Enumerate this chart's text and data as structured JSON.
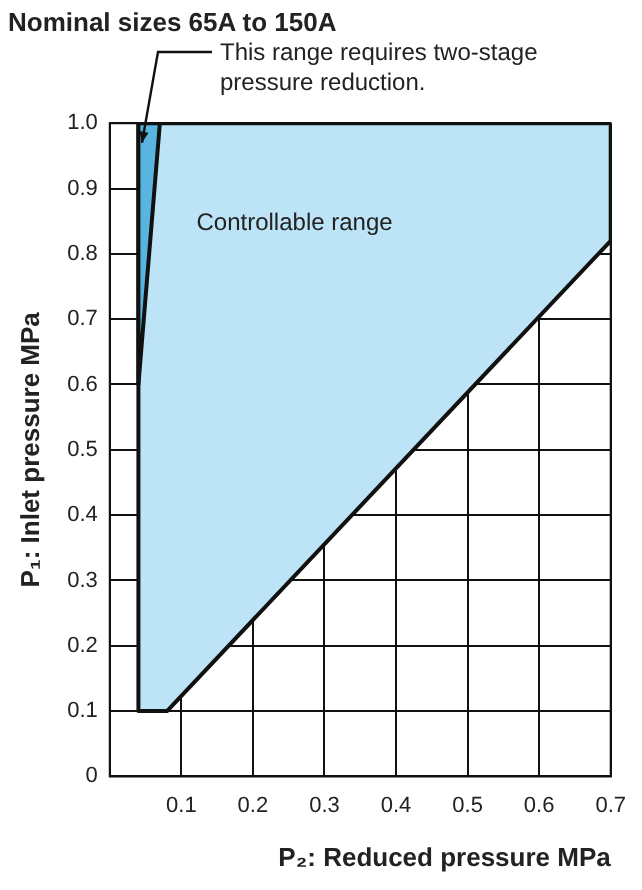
{
  "chart_data": {
    "type": "area",
    "title": "Nominal sizes 65A to 150A",
    "xlabel": "P₂: Reduced pressure MPa",
    "ylabel": "P₁: Inlet pressure MPa",
    "xlim": [
      0,
      0.7
    ],
    "ylim": [
      0,
      1
    ],
    "xticks": [
      0.1,
      0.2,
      0.3,
      0.4,
      0.5,
      0.6,
      0.7
    ],
    "yticks": [
      0,
      0.1,
      0.2,
      0.3,
      0.4,
      0.5,
      0.6,
      0.7,
      0.8,
      0.9,
      {
        "value": 1,
        "label": "1.0"
      }
    ],
    "grid": true,
    "legend": false,
    "series": [
      {
        "name": "Controllable range",
        "color": "#bde3f7",
        "x": [
          0.04,
          0.08,
          0.7,
          0.7,
          0.04
        ],
        "values": [
          0.1,
          0.1,
          0.82,
          1,
          1
        ]
      },
      {
        "color": "#5ab4e0",
        "x": [
          0.04,
          0.07,
          0.04
        ],
        "values": [
          0.6,
          1,
          1
        ]
      }
    ],
    "annotations": [
      {
        "text": "This range requires two-stage pressure reduction.",
        "x": 0.045,
        "y": 0.97
      }
    ]
  }
}
